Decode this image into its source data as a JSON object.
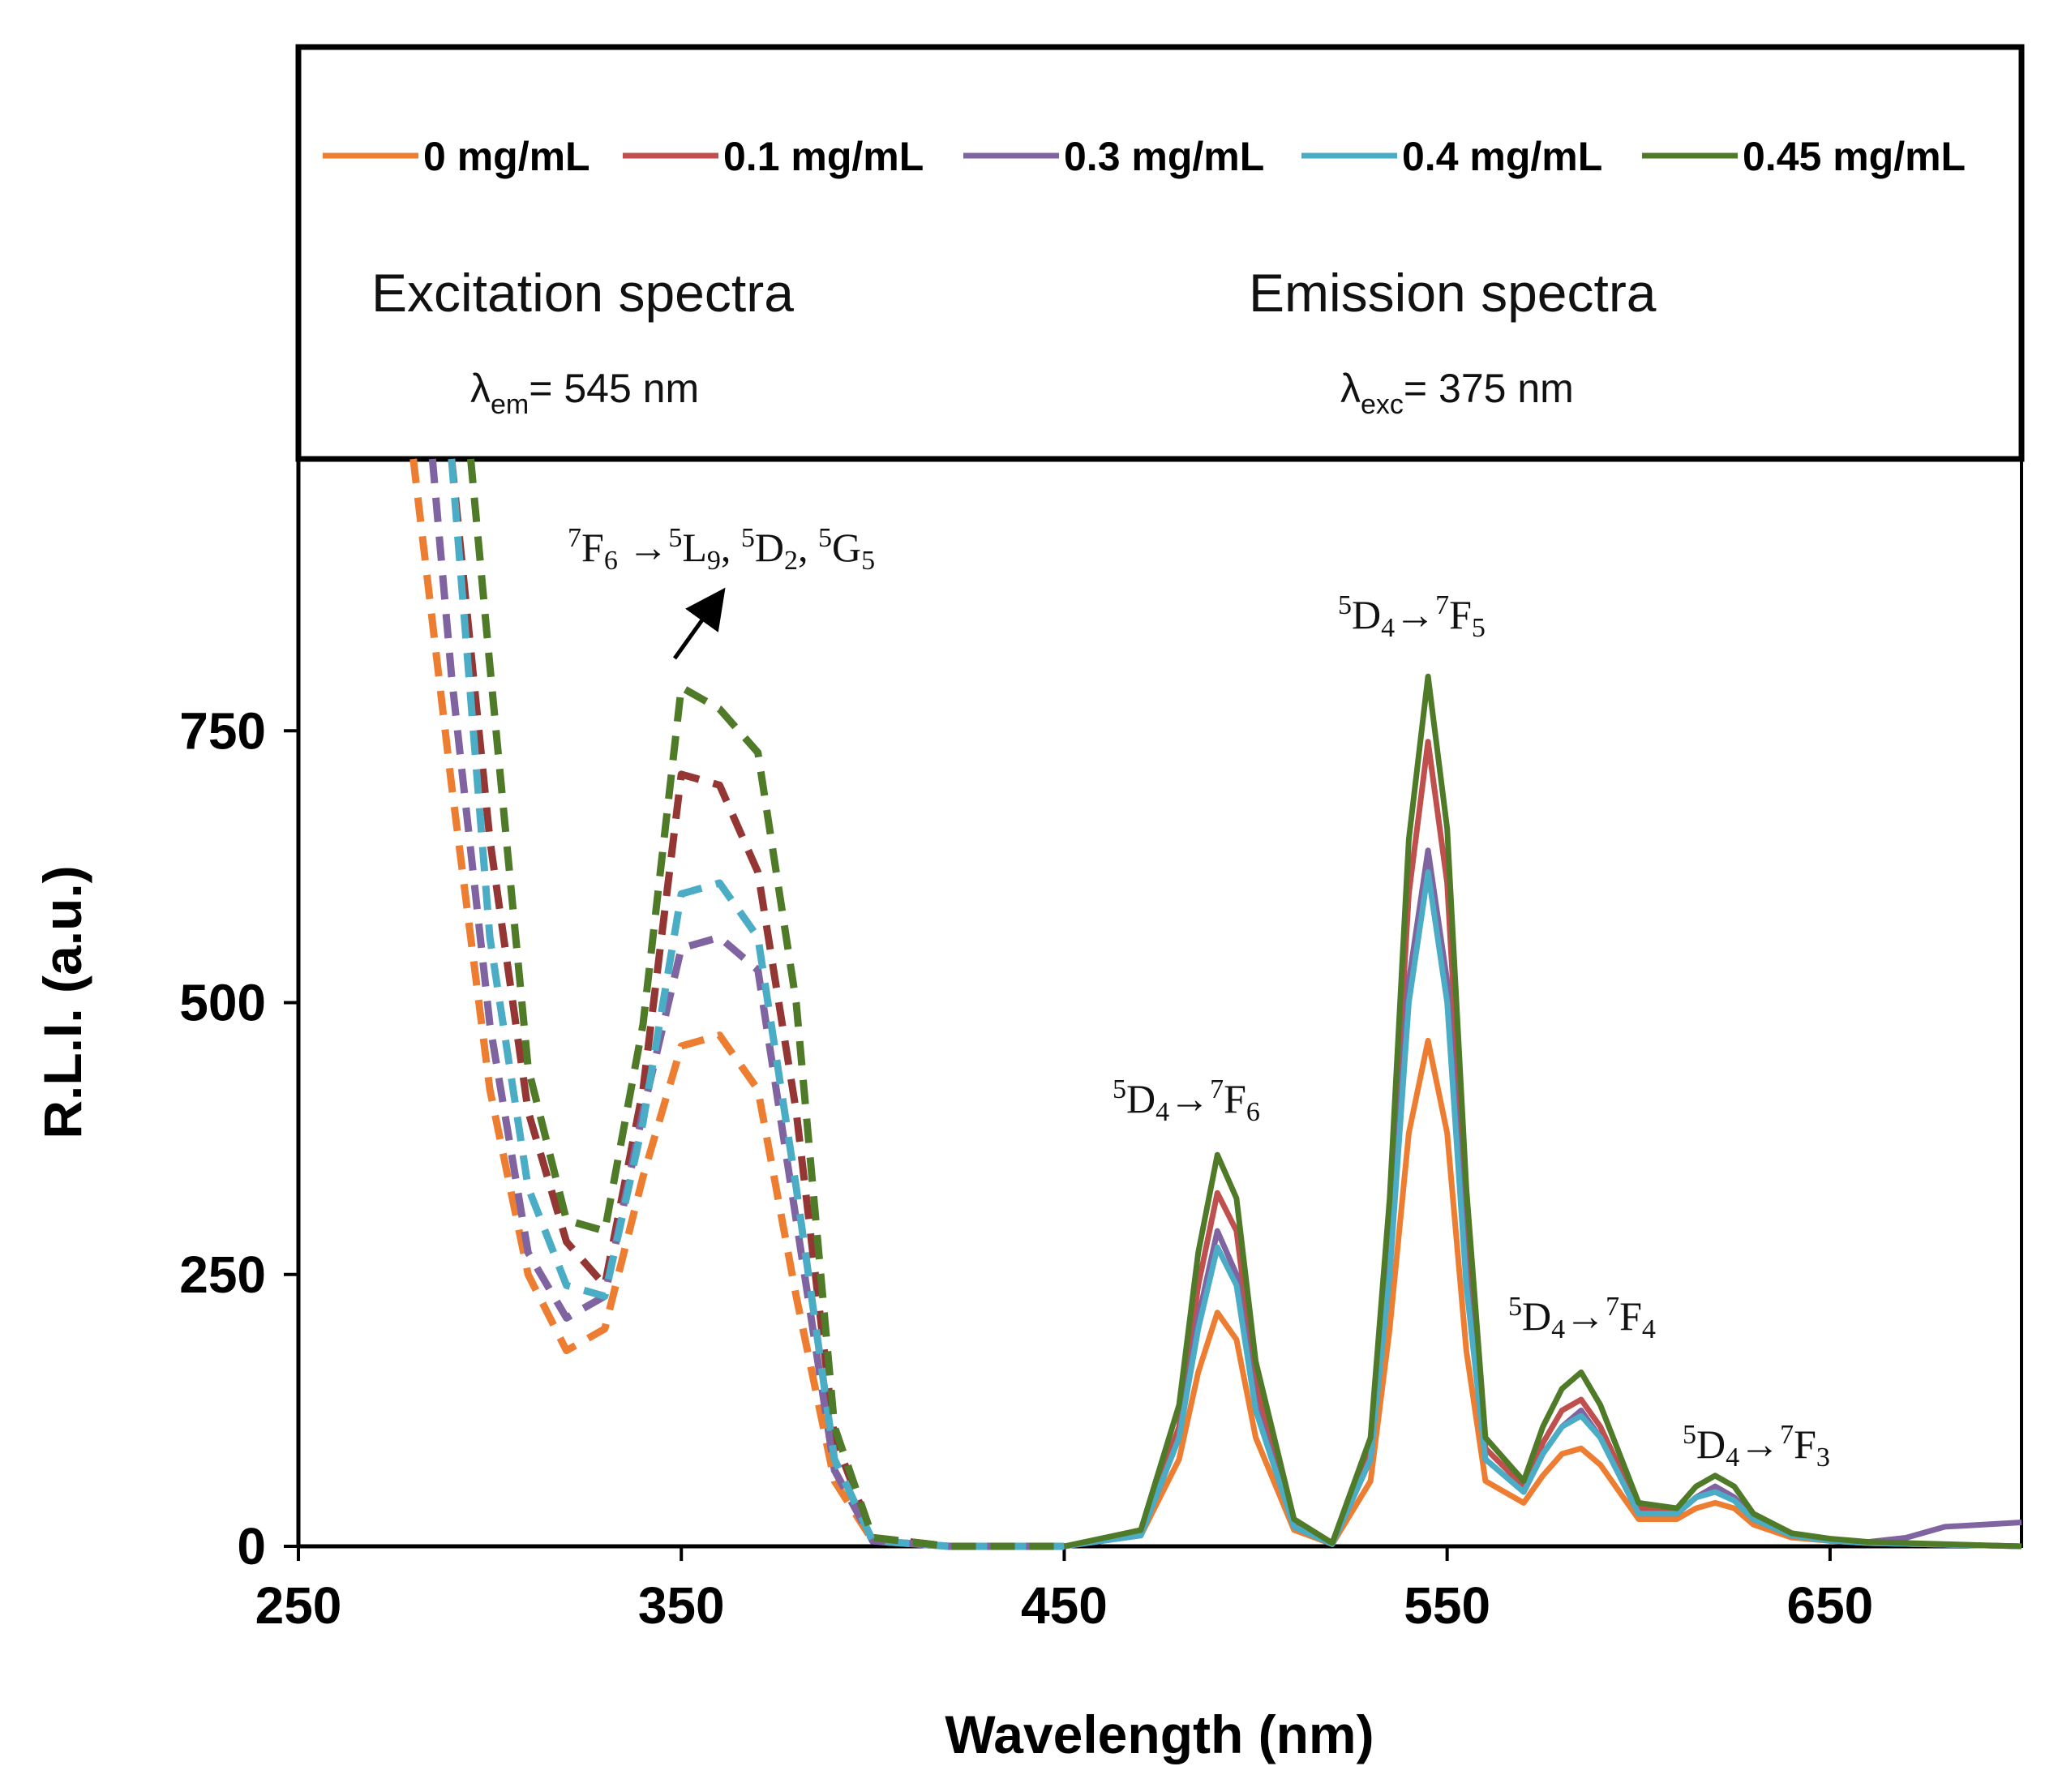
{
  "chart_data": {
    "type": "line",
    "xlabel": "Wavelength (nm)",
    "ylabel": "R.L.I. (a.u.)",
    "xlim": [
      250,
      700
    ],
    "ylim": [
      0,
      1000
    ],
    "xticks": [
      "250",
      "350",
      "450",
      "550",
      "650"
    ],
    "yticks": [
      "0",
      "250",
      "500",
      "750"
    ],
    "colors": {
      "s0": "#ED7D31",
      "s1": "#C0504D",
      "s2": "#8064A2",
      "s3": "#4BACC6",
      "s4": "#4F7A28",
      "s1_excitation": "#943634",
      "arrow": "#000000"
    },
    "series": [
      {
        "name": "0 mg/mL",
        "excitation_style": "dashed",
        "excitation": {
          "x": [
            280,
            290,
            300,
            310,
            320,
            330,
            340,
            350,
            360,
            370,
            380,
            390,
            400,
            420,
            450
          ],
          "y": [
            1000,
            700,
            420,
            250,
            180,
            200,
            340,
            460,
            470,
            420,
            230,
            60,
            5,
            0,
            0
          ]
        },
        "emission": {
          "x": [
            450,
            470,
            480,
            485,
            490,
            495,
            500,
            510,
            520,
            530,
            535,
            540,
            545,
            550,
            555,
            560,
            570,
            575,
            580,
            585,
            590,
            600,
            610,
            615,
            620,
            625,
            630,
            640,
            650,
            660,
            700
          ],
          "y": [
            0,
            10,
            80,
            160,
            215,
            190,
            100,
            15,
            2,
            60,
            200,
            380,
            465,
            380,
            180,
            60,
            40,
            65,
            85,
            90,
            75,
            25,
            25,
            35,
            40,
            35,
            20,
            8,
            5,
            3,
            0
          ]
        }
      },
      {
        "name": "0.1 mg/mL",
        "excitation_style": "dashed",
        "excitation": {
          "x": [
            290,
            300,
            310,
            320,
            330,
            340,
            350,
            360,
            370,
            380,
            390,
            400,
            420,
            450
          ],
          "y": [
            1000,
            650,
            400,
            280,
            240,
            420,
            710,
            700,
            620,
            400,
            100,
            8,
            0,
            0
          ]
        },
        "emission": {
          "x": [
            450,
            470,
            480,
            485,
            490,
            495,
            500,
            510,
            520,
            530,
            535,
            540,
            545,
            550,
            555,
            560,
            570,
            575,
            580,
            585,
            590,
            600,
            610,
            615,
            620,
            625,
            630,
            640,
            650,
            660,
            700
          ],
          "y": [
            0,
            12,
            110,
            240,
            325,
            290,
            150,
            20,
            2,
            90,
            300,
            600,
            740,
            610,
            300,
            90,
            55,
            95,
            125,
            135,
            110,
            35,
            30,
            45,
            55,
            45,
            25,
            10,
            6,
            3,
            0
          ]
        }
      },
      {
        "name": "0.3 mg/mL",
        "excitation_style": "dashed",
        "excitation": {
          "x": [
            285,
            290,
            300,
            310,
            320,
            330,
            340,
            350,
            360,
            370,
            380,
            390,
            400,
            420,
            450
          ],
          "y": [
            1000,
            800,
            480,
            270,
            210,
            230,
            400,
            550,
            560,
            530,
            300,
            70,
            5,
            0,
            0
          ]
        },
        "emission": {
          "x": [
            450,
            470,
            480,
            485,
            490,
            495,
            500,
            510,
            520,
            530,
            535,
            540,
            545,
            550,
            555,
            560,
            570,
            575,
            580,
            585,
            590,
            600,
            610,
            615,
            620,
            625,
            630,
            640,
            650,
            660,
            670,
            680,
            690,
            700
          ],
          "y": [
            0,
            10,
            100,
            210,
            290,
            250,
            130,
            18,
            2,
            80,
            260,
            520,
            640,
            520,
            250,
            80,
            50,
            85,
            110,
            125,
            100,
            30,
            30,
            45,
            55,
            45,
            25,
            10,
            5,
            4,
            8,
            18,
            20,
            22
          ]
        }
      },
      {
        "name": "0.4 mg/mL",
        "excitation_style": "dashed",
        "excitation": {
          "x": [
            290,
            300,
            310,
            320,
            330,
            340,
            350,
            360,
            370,
            380,
            390,
            400,
            420,
            450
          ],
          "y": [
            1000,
            560,
            330,
            240,
            230,
            390,
            600,
            610,
            560,
            330,
            80,
            5,
            0,
            0
          ]
        },
        "emission": {
          "x": [
            450,
            470,
            480,
            485,
            490,
            495,
            500,
            510,
            520,
            530,
            535,
            540,
            545,
            550,
            555,
            560,
            570,
            575,
            580,
            585,
            590,
            600,
            610,
            615,
            620,
            625,
            630,
            640,
            650,
            660,
            700
          ],
          "y": [
            0,
            10,
            100,
            200,
            275,
            240,
            125,
            18,
            2,
            80,
            250,
            500,
            620,
            500,
            240,
            80,
            50,
            85,
            110,
            120,
            100,
            30,
            30,
            45,
            50,
            42,
            25,
            10,
            5,
            3,
            0
          ]
        }
      },
      {
        "name": "0.45 mg/mL",
        "excitation_style": "dashed",
        "excitation": {
          "x": [
            295,
            300,
            310,
            320,
            330,
            340,
            350,
            360,
            370,
            380,
            390,
            400,
            420,
            450
          ],
          "y": [
            1000,
            810,
            440,
            300,
            290,
            480,
            790,
            770,
            730,
            500,
            110,
            8,
            0,
            0
          ]
        },
        "emission": {
          "x": [
            450,
            470,
            480,
            485,
            490,
            495,
            500,
            510,
            520,
            530,
            535,
            540,
            545,
            550,
            555,
            560,
            570,
            575,
            580,
            585,
            590,
            600,
            610,
            615,
            620,
            625,
            630,
            640,
            650,
            660,
            700
          ],
          "y": [
            0,
            15,
            130,
            270,
            360,
            320,
            170,
            25,
            3,
            100,
            320,
            650,
            800,
            660,
            330,
            100,
            60,
            110,
            145,
            160,
            130,
            40,
            35,
            55,
            65,
            55,
            30,
            12,
            7,
            4,
            0
          ]
        }
      }
    ],
    "panels": {
      "excitation_title": "Excitation spectra",
      "excitation_param": "λem= 545 nm",
      "emission_title": "Emission spectra",
      "emission_param": "λexc= 375 nm"
    },
    "annotations": [
      {
        "text": "7F6 →5L9, 5D2, 5G5",
        "x": 350,
        "y": 900
      },
      {
        "text": "5D4→7F6",
        "x": 490,
        "y": 400
      },
      {
        "text": "5D4→7F5",
        "x": 545,
        "y": 840
      },
      {
        "text": "5D4→7F4",
        "x": 585,
        "y": 200
      },
      {
        "text": "5D4→7F3",
        "x": 620,
        "y": 90
      }
    ]
  }
}
